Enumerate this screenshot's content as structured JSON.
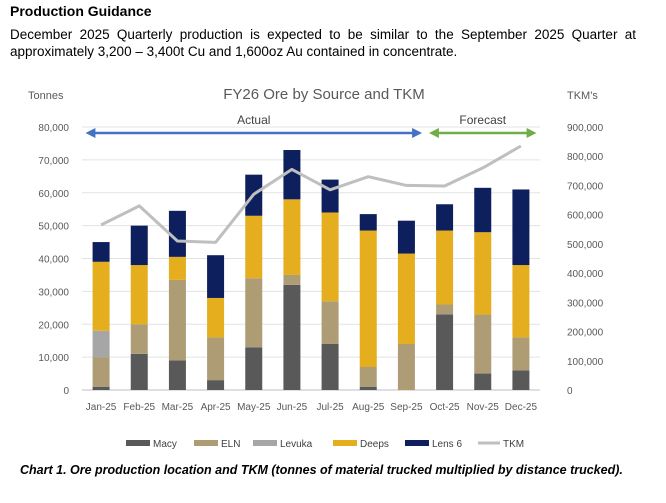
{
  "section_heading": "Production Guidance",
  "guidance_text": "December 2025 Quarterly production is expected to be similar to the September 2025 Quarter at approximately 3,200 – 3,400t Cu and 1,600oz Au contained in concentrate.",
  "caption": "Chart 1. Ore production location and TKM (tonnes of material trucked multiplied by distance trucked).",
  "chart_data": {
    "type": "bar",
    "stacked": true,
    "title": "FY26 Ore by Source and TKM",
    "ylabel": "Tonnes",
    "y2label": "TKM's",
    "ylim": [
      0,
      80000
    ],
    "y2lim": [
      0,
      900000
    ],
    "yticks": [
      "0",
      "10,000",
      "20,000",
      "30,000",
      "40,000",
      "50,000",
      "60,000",
      "70,000",
      "80,000"
    ],
    "y2ticks": [
      "0",
      "100,000",
      "200,000",
      "300,000",
      "400,000",
      "500,000",
      "600,000",
      "700,000",
      "800,000",
      "900,000"
    ],
    "grid": true,
    "legend_position": "bottom",
    "categories": [
      "Jan-25",
      "Feb-25",
      "Mar-25",
      "Apr-25",
      "May-25",
      "Jun-25",
      "Jul-25",
      "Aug-25",
      "Sep-25",
      "Oct-25",
      "Nov-25",
      "Dec-25"
    ],
    "annotations": [
      {
        "label": "Actual",
        "from": "Jan-25",
        "to": "Sep-25",
        "color": "#4472c4"
      },
      {
        "label": "Forecast",
        "from": "Oct-25",
        "to": "Dec-25",
        "color": "#70ad47"
      }
    ],
    "series": [
      {
        "name": "Macy",
        "color": "#595959",
        "values": [
          1000,
          11000,
          9000,
          3000,
          13000,
          32000,
          14000,
          1000,
          0,
          23000,
          5000,
          6000
        ]
      },
      {
        "name": "ELN",
        "color": "#ae9c74",
        "values": [
          9000,
          9000,
          24500,
          13000,
          21000,
          3000,
          13000,
          6000,
          14000,
          3000,
          18000,
          10000
        ]
      },
      {
        "name": "Levuka",
        "color": "#a6a6a6",
        "values": [
          8000,
          0,
          0,
          0,
          0,
          0,
          0,
          0,
          0,
          0,
          0,
          0
        ]
      },
      {
        "name": "Deeps",
        "color": "#e5ae1e",
        "values": [
          21000,
          18000,
          7000,
          12000,
          19000,
          23000,
          27000,
          41500,
          27500,
          22500,
          25000,
          22000
        ]
      },
      {
        "name": "Lens 6",
        "color": "#0d1f5c",
        "values": [
          6000,
          12000,
          14000,
          13000,
          12500,
          15000,
          10000,
          5000,
          10000,
          8000,
          13500,
          23000
        ]
      },
      {
        "name": "TKM",
        "color": "#bfbfbf",
        "axis": "right",
        "type": "line",
        "values": [
          565000,
          630000,
          510000,
          505000,
          670000,
          755000,
          685000,
          730000,
          700000,
          698000,
          760000,
          835000
        ]
      }
    ]
  }
}
